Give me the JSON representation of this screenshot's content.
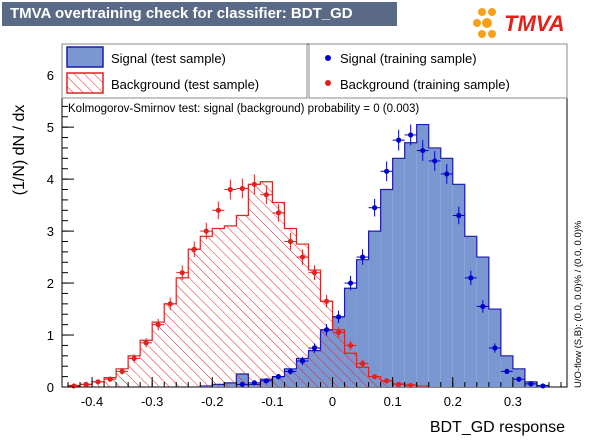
{
  "header": {
    "title": "TMVA overtraining check for classifier: BDT_GD",
    "logo_text": "TMVA"
  },
  "side_note": "U/O-flow (S,B): (0.0, 0.0)% / (0.0, 0.0)%",
  "ks_text": "Kolmogorov-Smirnov test: signal (background) probability =     0 (0.003)",
  "colors": {
    "signal_fill": "#7a97d2",
    "signal_line": "#1c1ca8",
    "signal_points": "#0000cc",
    "background": "#e02222",
    "title_bg": "#5a6a86",
    "logo_orange": "#f7a11a",
    "logo_red": "#e32119"
  },
  "chart_data": {
    "type": "histogram",
    "xlabel": "BDT_GD response",
    "ylabel": "(1/N) dN / dx",
    "xlim": [
      -0.45,
      0.39
    ],
    "ylim": [
      0,
      6.6
    ],
    "bin_width": 0.02,
    "x_ticks": [
      -0.4,
      -0.3,
      -0.2,
      -0.1,
      0,
      0.1,
      0.2,
      0.3
    ],
    "x_tick_labels": [
      "-0.4",
      "-0.3",
      "-0.2",
      "-0.1",
      "0",
      "0.1",
      "0.2",
      "0.3"
    ],
    "y_ticks": [
      0,
      1,
      2,
      3,
      4,
      5,
      6
    ],
    "y_tick_labels": [
      "0",
      "1",
      "2",
      "3",
      "4",
      "5",
      "6"
    ],
    "legend": [
      {
        "label": "Signal (test sample)",
        "style": "filled"
      },
      {
        "label": "Background (test sample)",
        "style": "hatched"
      },
      {
        "label": "Signal (training sample)",
        "style": "marker-blue"
      },
      {
        "label": "Background (training sample)",
        "style": "marker-red"
      }
    ],
    "signal_test": {
      "bin_low": [
        -0.22,
        -0.2,
        -0.18,
        -0.16,
        -0.14,
        -0.12,
        -0.1,
        -0.08,
        -0.06,
        -0.04,
        -0.02,
        0.0,
        0.02,
        0.04,
        0.06,
        0.08,
        0.1,
        0.12,
        0.14,
        0.16,
        0.18,
        0.2,
        0.22,
        0.24,
        0.26,
        0.28,
        0.3,
        0.32,
        0.34
      ],
      "values": [
        0.02,
        0.05,
        0.08,
        0.25,
        0.05,
        0.15,
        0.2,
        0.35,
        0.55,
        0.7,
        1.1,
        1.35,
        1.9,
        2.45,
        3.0,
        3.8,
        4.4,
        4.7,
        5.05,
        4.6,
        4.4,
        3.9,
        2.9,
        2.5,
        1.5,
        0.6,
        0.35,
        0.1,
        0.03
      ]
    },
    "background_test": {
      "bin_low": [
        -0.44,
        -0.42,
        -0.4,
        -0.38,
        -0.36,
        -0.34,
        -0.32,
        -0.3,
        -0.28,
        -0.26,
        -0.24,
        -0.22,
        -0.2,
        -0.18,
        -0.16,
        -0.14,
        -0.12,
        -0.1,
        -0.08,
        -0.06,
        -0.04,
        -0.02,
        0.0,
        0.02,
        0.04,
        0.06,
        0.08,
        0.1,
        0.12,
        0.14
      ],
      "values": [
        0.03,
        0.05,
        0.1,
        0.18,
        0.35,
        0.6,
        0.9,
        1.25,
        1.6,
        2.1,
        2.65,
        2.9,
        3.05,
        3.1,
        3.3,
        3.9,
        3.95,
        3.55,
        3.05,
        2.75,
        2.25,
        1.65,
        1.1,
        0.65,
        0.38,
        0.2,
        0.12,
        0.06,
        0.04,
        0.02
      ]
    },
    "signal_train": {
      "x": [
        -0.15,
        -0.13,
        -0.11,
        -0.09,
        -0.07,
        -0.05,
        -0.03,
        -0.01,
        0.01,
        0.03,
        0.05,
        0.07,
        0.09,
        0.11,
        0.13,
        0.15,
        0.17,
        0.19,
        0.21,
        0.23,
        0.25,
        0.27,
        0.29,
        0.31,
        0.33,
        0.35
      ],
      "y": [
        0.05,
        0.08,
        0.12,
        0.2,
        0.3,
        0.5,
        0.75,
        1.1,
        1.35,
        2.0,
        2.5,
        3.45,
        4.15,
        4.75,
        4.85,
        4.55,
        4.35,
        4.1,
        3.3,
        2.1,
        1.55,
        0.75,
        0.3,
        0.15,
        0.06,
        0.02
      ],
      "yerr": [
        0.03,
        0.03,
        0.04,
        0.05,
        0.06,
        0.08,
        0.09,
        0.11,
        0.12,
        0.14,
        0.15,
        0.17,
        0.19,
        0.2,
        0.2,
        0.2,
        0.19,
        0.19,
        0.17,
        0.14,
        0.12,
        0.09,
        0.05,
        0.04,
        0.03,
        0.02
      ]
    },
    "background_train": {
      "x": [
        -0.43,
        -0.41,
        -0.39,
        -0.37,
        -0.35,
        -0.33,
        -0.31,
        -0.29,
        -0.27,
        -0.25,
        -0.23,
        -0.21,
        -0.19,
        -0.17,
        -0.15,
        -0.13,
        -0.11,
        -0.09,
        -0.07,
        -0.05,
        -0.03,
        -0.01,
        0.01,
        0.03,
        0.05,
        0.07,
        0.09,
        0.11,
        0.13
      ],
      "y": [
        0.02,
        0.05,
        0.1,
        0.15,
        0.3,
        0.55,
        0.85,
        1.2,
        1.6,
        2.2,
        2.65,
        3.0,
        3.4,
        3.8,
        3.82,
        3.9,
        3.7,
        3.35,
        2.8,
        2.5,
        2.2,
        1.65,
        1.05,
        0.8,
        0.45,
        0.2,
        0.12,
        0.05,
        0.03
      ],
      "yerr": [
        0.02,
        0.03,
        0.04,
        0.05,
        0.06,
        0.08,
        0.09,
        0.11,
        0.12,
        0.14,
        0.15,
        0.16,
        0.17,
        0.19,
        0.19,
        0.19,
        0.18,
        0.17,
        0.16,
        0.15,
        0.14,
        0.12,
        0.1,
        0.09,
        0.07,
        0.05,
        0.04,
        0.03,
        0.02
      ]
    }
  }
}
